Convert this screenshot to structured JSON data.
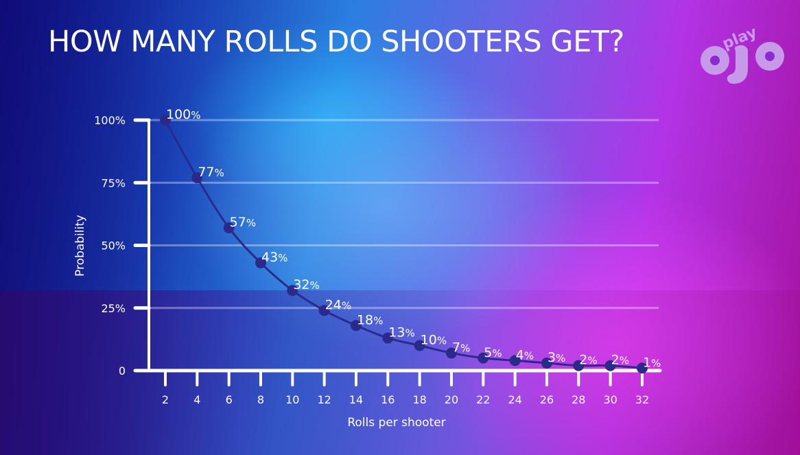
{
  "header": {
    "title": "HOW MANY ROLLS DO SHOOTERS GET?",
    "logo_text_top": "play",
    "logo_text_main": "ojo"
  },
  "colors": {
    "background_left": "#0a0f86",
    "background_center": "#2ab0ff",
    "background_right": "#d930e8",
    "line": "#2a2a8c",
    "marker": "#2b2a8a",
    "axis": "#ffffff",
    "gridline": "rgba(255,255,255,0.35)",
    "logo": "#c89be8"
  },
  "chart_data": {
    "type": "line",
    "title": "HOW MANY ROLLS DO SHOOTERS GET?",
    "xlabel": "Rolls per shooter",
    "ylabel": "Probability",
    "x": [
      2,
      4,
      6,
      8,
      10,
      12,
      14,
      16,
      18,
      20,
      22,
      24,
      26,
      28,
      30,
      32
    ],
    "series": [
      {
        "name": "Probability",
        "values": [
          100,
          77,
          57,
          43,
          32,
          24,
          18,
          13,
          10,
          7,
          5,
          4,
          3,
          2,
          2,
          1
        ]
      }
    ],
    "data_labels": [
      "100%",
      "77%",
      "57%",
      "43%",
      "32%",
      "24%",
      "18%",
      "13%",
      "10%",
      "7%",
      "5%",
      "4%",
      "3%",
      "2%",
      "2%",
      "1%"
    ],
    "y_ticks": [
      0,
      25,
      50,
      75,
      100
    ],
    "y_tick_labels": [
      "0",
      "25%",
      "50%",
      "75%",
      "100%"
    ],
    "x_tick_labels": [
      "2",
      "4",
      "6",
      "8",
      "10",
      "12",
      "14",
      "16",
      "18",
      "20",
      "22",
      "24",
      "26",
      "28",
      "30",
      "32"
    ],
    "ylim": [
      0,
      100
    ],
    "grid": true,
    "legend": "none"
  }
}
